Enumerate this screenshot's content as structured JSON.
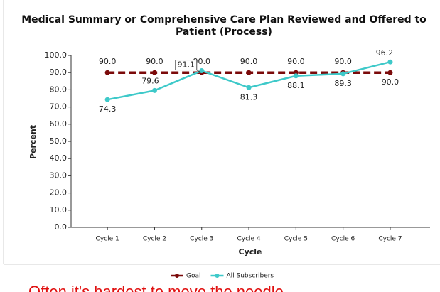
{
  "chart_data": {
    "type": "line",
    "title": "Medical Summary or Comprehensive Care Plan Reviewed and Offered to Patient (Process)",
    "x_label": "Cycle",
    "y_label": "Percent",
    "categories": [
      "Cycle 1",
      "Cycle 2",
      "Cycle 3",
      "Cycle 4",
      "Cycle 5",
      "Cycle 6",
      "Cycle 7"
    ],
    "series": [
      {
        "name": "Goal",
        "color": "#7b0a0a",
        "values": [
          90,
          90,
          90,
          90,
          90,
          90,
          90
        ],
        "value_labels": [
          "90.0",
          "90.0",
          "90.0",
          "90.0",
          "90.0",
          "90.0",
          "90.0"
        ]
      },
      {
        "name": "All Subscribers",
        "color": "#3ec9c9",
        "values": [
          74.3,
          79.6,
          91.1,
          81.3,
          88.1,
          89.3,
          96.2
        ],
        "value_labels": [
          "74.3",
          "79.6",
          "91.1",
          "81.3",
          "88.1",
          "89.3",
          "96.2"
        ]
      }
    ],
    "ylim": [
      0,
      100
    ],
    "yticks": [
      {
        "value": 0,
        "label": "0.0"
      },
      {
        "value": 10,
        "label": "10.0"
      },
      {
        "value": 20,
        "label": "20.0"
      },
      {
        "value": 30,
        "label": "30.0"
      },
      {
        "value": 40,
        "label": "40.0"
      },
      {
        "value": 50,
        "label": "50.0"
      },
      {
        "value": 60,
        "label": "60.0"
      },
      {
        "value": 70,
        "label": "70.0"
      },
      {
        "value": 80,
        "label": "80.0"
      },
      {
        "value": 90,
        "label": "90.0"
      },
      {
        "value": 100,
        "label": "100.0"
      }
    ],
    "legend": "bottom",
    "annotation": "Often it's hardest to move the needle"
  }
}
